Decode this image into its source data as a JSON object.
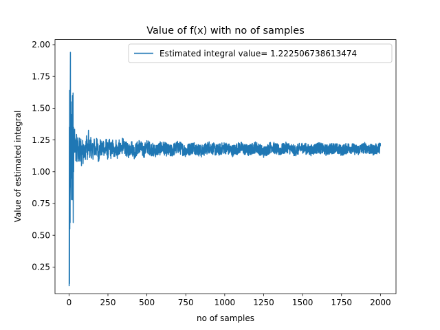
{
  "chart_data": {
    "type": "line",
    "title": "Value of f(x) with no of samples",
    "xlabel": "no of samples",
    "ylabel": "Value of estimated integral",
    "xlim": [
      -90,
      2100
    ],
    "ylim": [
      0.04,
      2.04
    ],
    "xticks": [
      0,
      250,
      500,
      750,
      1000,
      1250,
      1500,
      1750,
      2000
    ],
    "xtick_labels": [
      "0",
      "250",
      "500",
      "750",
      "1000",
      "1250",
      "1500",
      "1750",
      "2000"
    ],
    "yticks": [
      0.25,
      0.5,
      0.75,
      1.0,
      1.25,
      1.5,
      1.75,
      2.0
    ],
    "ytick_labels": [
      "0.25",
      "0.50",
      "0.75",
      "1.00",
      "1.25",
      "1.50",
      "1.75",
      "2.00"
    ],
    "grid": false,
    "legend_position": "top-right",
    "series": [
      {
        "name": "Estimated integral value= 1.222506738613474",
        "color": "#1f77b4",
        "x_start": 1,
        "x_end": 2000,
        "converges_to": 1.18,
        "points": [
          [
            1,
            0.1
          ],
          [
            2,
            1.35
          ],
          [
            3,
            0.12
          ],
          [
            4,
            1.64
          ],
          [
            5,
            0.55
          ],
          [
            6,
            1.1
          ],
          [
            7,
            0.6
          ],
          [
            8,
            1.62
          ],
          [
            9,
            1.94
          ],
          [
            10,
            0.88
          ],
          [
            11,
            1.25
          ],
          [
            12,
            1.0
          ],
          [
            13,
            1.55
          ],
          [
            14,
            0.9
          ],
          [
            15,
            0.78
          ],
          [
            16,
            1.35
          ],
          [
            17,
            1.1
          ],
          [
            18,
            0.95
          ],
          [
            19,
            1.45
          ],
          [
            20,
            1.2
          ],
          [
            21,
            1.0
          ],
          [
            22,
            1.6
          ],
          [
            23,
            0.78
          ],
          [
            24,
            1.3
          ],
          [
            25,
            1.05
          ],
          [
            26,
            1.62
          ],
          [
            27,
            0.6
          ],
          [
            28,
            1.2
          ],
          [
            29,
            1.35
          ],
          [
            30,
            1.0
          ],
          [
            32,
            1.42
          ],
          [
            34,
            0.95
          ],
          [
            36,
            1.63
          ],
          [
            38,
            1.15
          ],
          [
            40,
            1.0
          ],
          [
            42,
            1.3
          ],
          [
            45,
            0.98
          ],
          [
            48,
            1.38
          ],
          [
            50,
            1.05
          ],
          [
            55,
            1.35
          ],
          [
            60,
            0.93
          ],
          [
            65,
            1.25
          ],
          [
            70,
            1.0
          ],
          [
            75,
            1.3
          ],
          [
            80,
            0.95
          ],
          [
            85,
            1.25
          ],
          [
            90,
            1.05
          ],
          [
            95,
            1.3
          ],
          [
            100,
            0.98
          ],
          [
            110,
            1.35
          ],
          [
            120,
            1.07
          ],
          [
            125,
            1.45
          ],
          [
            130,
            1.1
          ],
          [
            140,
            1.32
          ],
          [
            150,
            1.05
          ],
          [
            160,
            1.28
          ],
          [
            170,
            1.1
          ],
          [
            180,
            1.3
          ],
          [
            190,
            1.0
          ],
          [
            200,
            1.25
          ],
          [
            210,
            1.1
          ],
          [
            220,
            1.32
          ],
          [
            230,
            1.08
          ],
          [
            240,
            1.3
          ],
          [
            250,
            1.05
          ],
          [
            260,
            1.28
          ],
          [
            270,
            1.1
          ],
          [
            280,
            1.25
          ],
          [
            290,
            1.05
          ],
          [
            300,
            1.3
          ],
          [
            310,
            1.07
          ],
          [
            320,
            1.25
          ],
          [
            330,
            1.12
          ],
          [
            340,
            1.2
          ],
          [
            345,
            1.44
          ],
          [
            350,
            1.15
          ],
          [
            360,
            1.22
          ],
          [
            380,
            1.1
          ],
          [
            400,
            1.25
          ],
          [
            420,
            1.08
          ],
          [
            450,
            1.27
          ],
          [
            480,
            1.1
          ],
          [
            500,
            1.25
          ],
          [
            550,
            1.12
          ],
          [
            600,
            1.22
          ],
          [
            650,
            1.1
          ],
          [
            700,
            1.24
          ],
          [
            750,
            1.12
          ],
          [
            800,
            1.23
          ],
          [
            850,
            1.1
          ],
          [
            900,
            1.24
          ],
          [
            950,
            1.13
          ],
          [
            1000,
            1.22
          ],
          [
            1050,
            1.12
          ],
          [
            1100,
            1.23
          ],
          [
            1150,
            1.12
          ],
          [
            1200,
            1.24
          ],
          [
            1250,
            1.08
          ],
          [
            1300,
            1.25
          ],
          [
            1350,
            1.13
          ],
          [
            1400,
            1.23
          ],
          [
            1450,
            1.12
          ],
          [
            1500,
            1.22
          ],
          [
            1550,
            1.13
          ],
          [
            1600,
            1.22
          ],
          [
            1650,
            1.14
          ],
          [
            1700,
            1.21
          ],
          [
            1750,
            1.13
          ],
          [
            1800,
            1.22
          ],
          [
            1850,
            1.14
          ],
          [
            1900,
            1.22
          ],
          [
            1950,
            1.14
          ],
          [
            2000,
            1.22
          ]
        ]
      }
    ]
  }
}
